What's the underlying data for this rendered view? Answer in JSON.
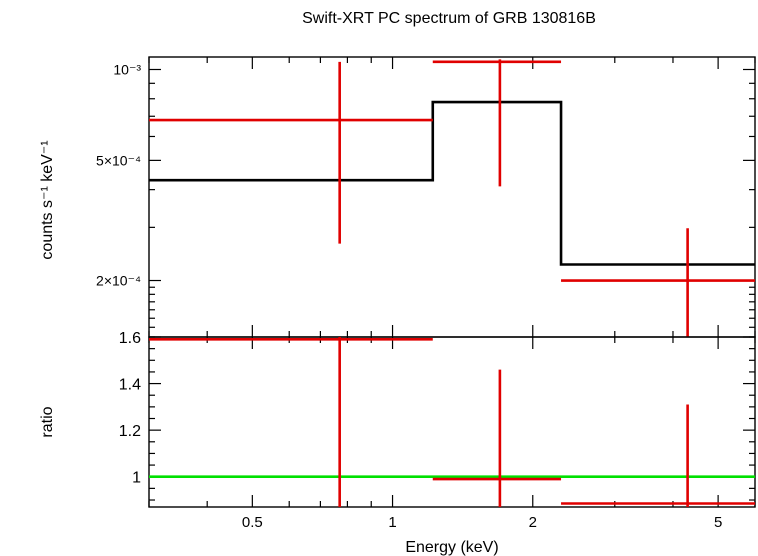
{
  "chart_data": [
    {
      "type": "line",
      "panel": "spectrum",
      "title": "Swift-XRT PC spectrum of GRB 130816B",
      "xscale": "log",
      "yscale": "log",
      "xlim": [
        0.3,
        6.0
      ],
      "ylim": [
        0.00013,
        0.0011
      ],
      "ylabel": "counts s⁻¹ keV⁻¹",
      "yticks": [
        {
          "value": 0.001,
          "label": "10⁻³"
        },
        {
          "value": 0.0005,
          "label": "5×10⁻⁴"
        },
        {
          "value": 0.0002,
          "label": "2×10⁻⁴"
        }
      ],
      "data_points": [
        {
          "x": 0.77,
          "xlo": 0.3,
          "xhi": 1.22,
          "y": 0.00068,
          "ylo": 0.000265,
          "yhi": 0.00106
        },
        {
          "x": 1.7,
          "xlo": 1.22,
          "xhi": 2.3,
          "y": 0.00106,
          "ylo": 0.00041,
          "yhi": 0.00108
        },
        {
          "x": 4.3,
          "xlo": 2.3,
          "xhi": 6.0,
          "y": 0.0002,
          "ylo": 0.00013,
          "yhi": 0.000298
        }
      ],
      "model_steps": [
        {
          "xlo": 0.3,
          "xhi": 1.22,
          "y": 0.00043
        },
        {
          "xlo": 1.22,
          "xhi": 2.3,
          "y": 0.00078
        },
        {
          "xlo": 2.3,
          "xhi": 6.0,
          "y": 0.000226
        }
      ]
    },
    {
      "type": "line",
      "panel": "ratio",
      "xscale": "log",
      "xlim": [
        0.3,
        6.0
      ],
      "ylim": [
        0.87,
        1.6
      ],
      "xlabel": "Energy (keV)",
      "ylabel": "ratio",
      "xticks": [
        {
          "value": 0.5,
          "label": "0.5"
        },
        {
          "value": 1,
          "label": "1"
        },
        {
          "value": 2,
          "label": "2"
        },
        {
          "value": 5,
          "label": "5"
        }
      ],
      "yticks": [
        {
          "value": 1,
          "label": "1"
        },
        {
          "value": 1.2,
          "label": "1.2"
        },
        {
          "value": 1.4,
          "label": "1.4"
        },
        {
          "value": 1.6,
          "label": "1.6"
        }
      ],
      "reference_line": 1.0,
      "data_points": [
        {
          "x": 0.77,
          "xlo": 0.3,
          "xhi": 1.22,
          "y": 1.59,
          "ylo": 0.87,
          "yhi": 1.6
        },
        {
          "x": 1.7,
          "xlo": 1.22,
          "xhi": 2.3,
          "y": 0.99,
          "ylo": 0.87,
          "yhi": 1.46
        },
        {
          "x": 4.3,
          "xlo": 2.3,
          "xhi": 6.0,
          "y": 0.885,
          "ylo": 0.87,
          "yhi": 1.31
        }
      ]
    }
  ],
  "colors": {
    "data": "#e00000",
    "model": "#000000",
    "reference": "#00e000",
    "axes": "#000000"
  }
}
